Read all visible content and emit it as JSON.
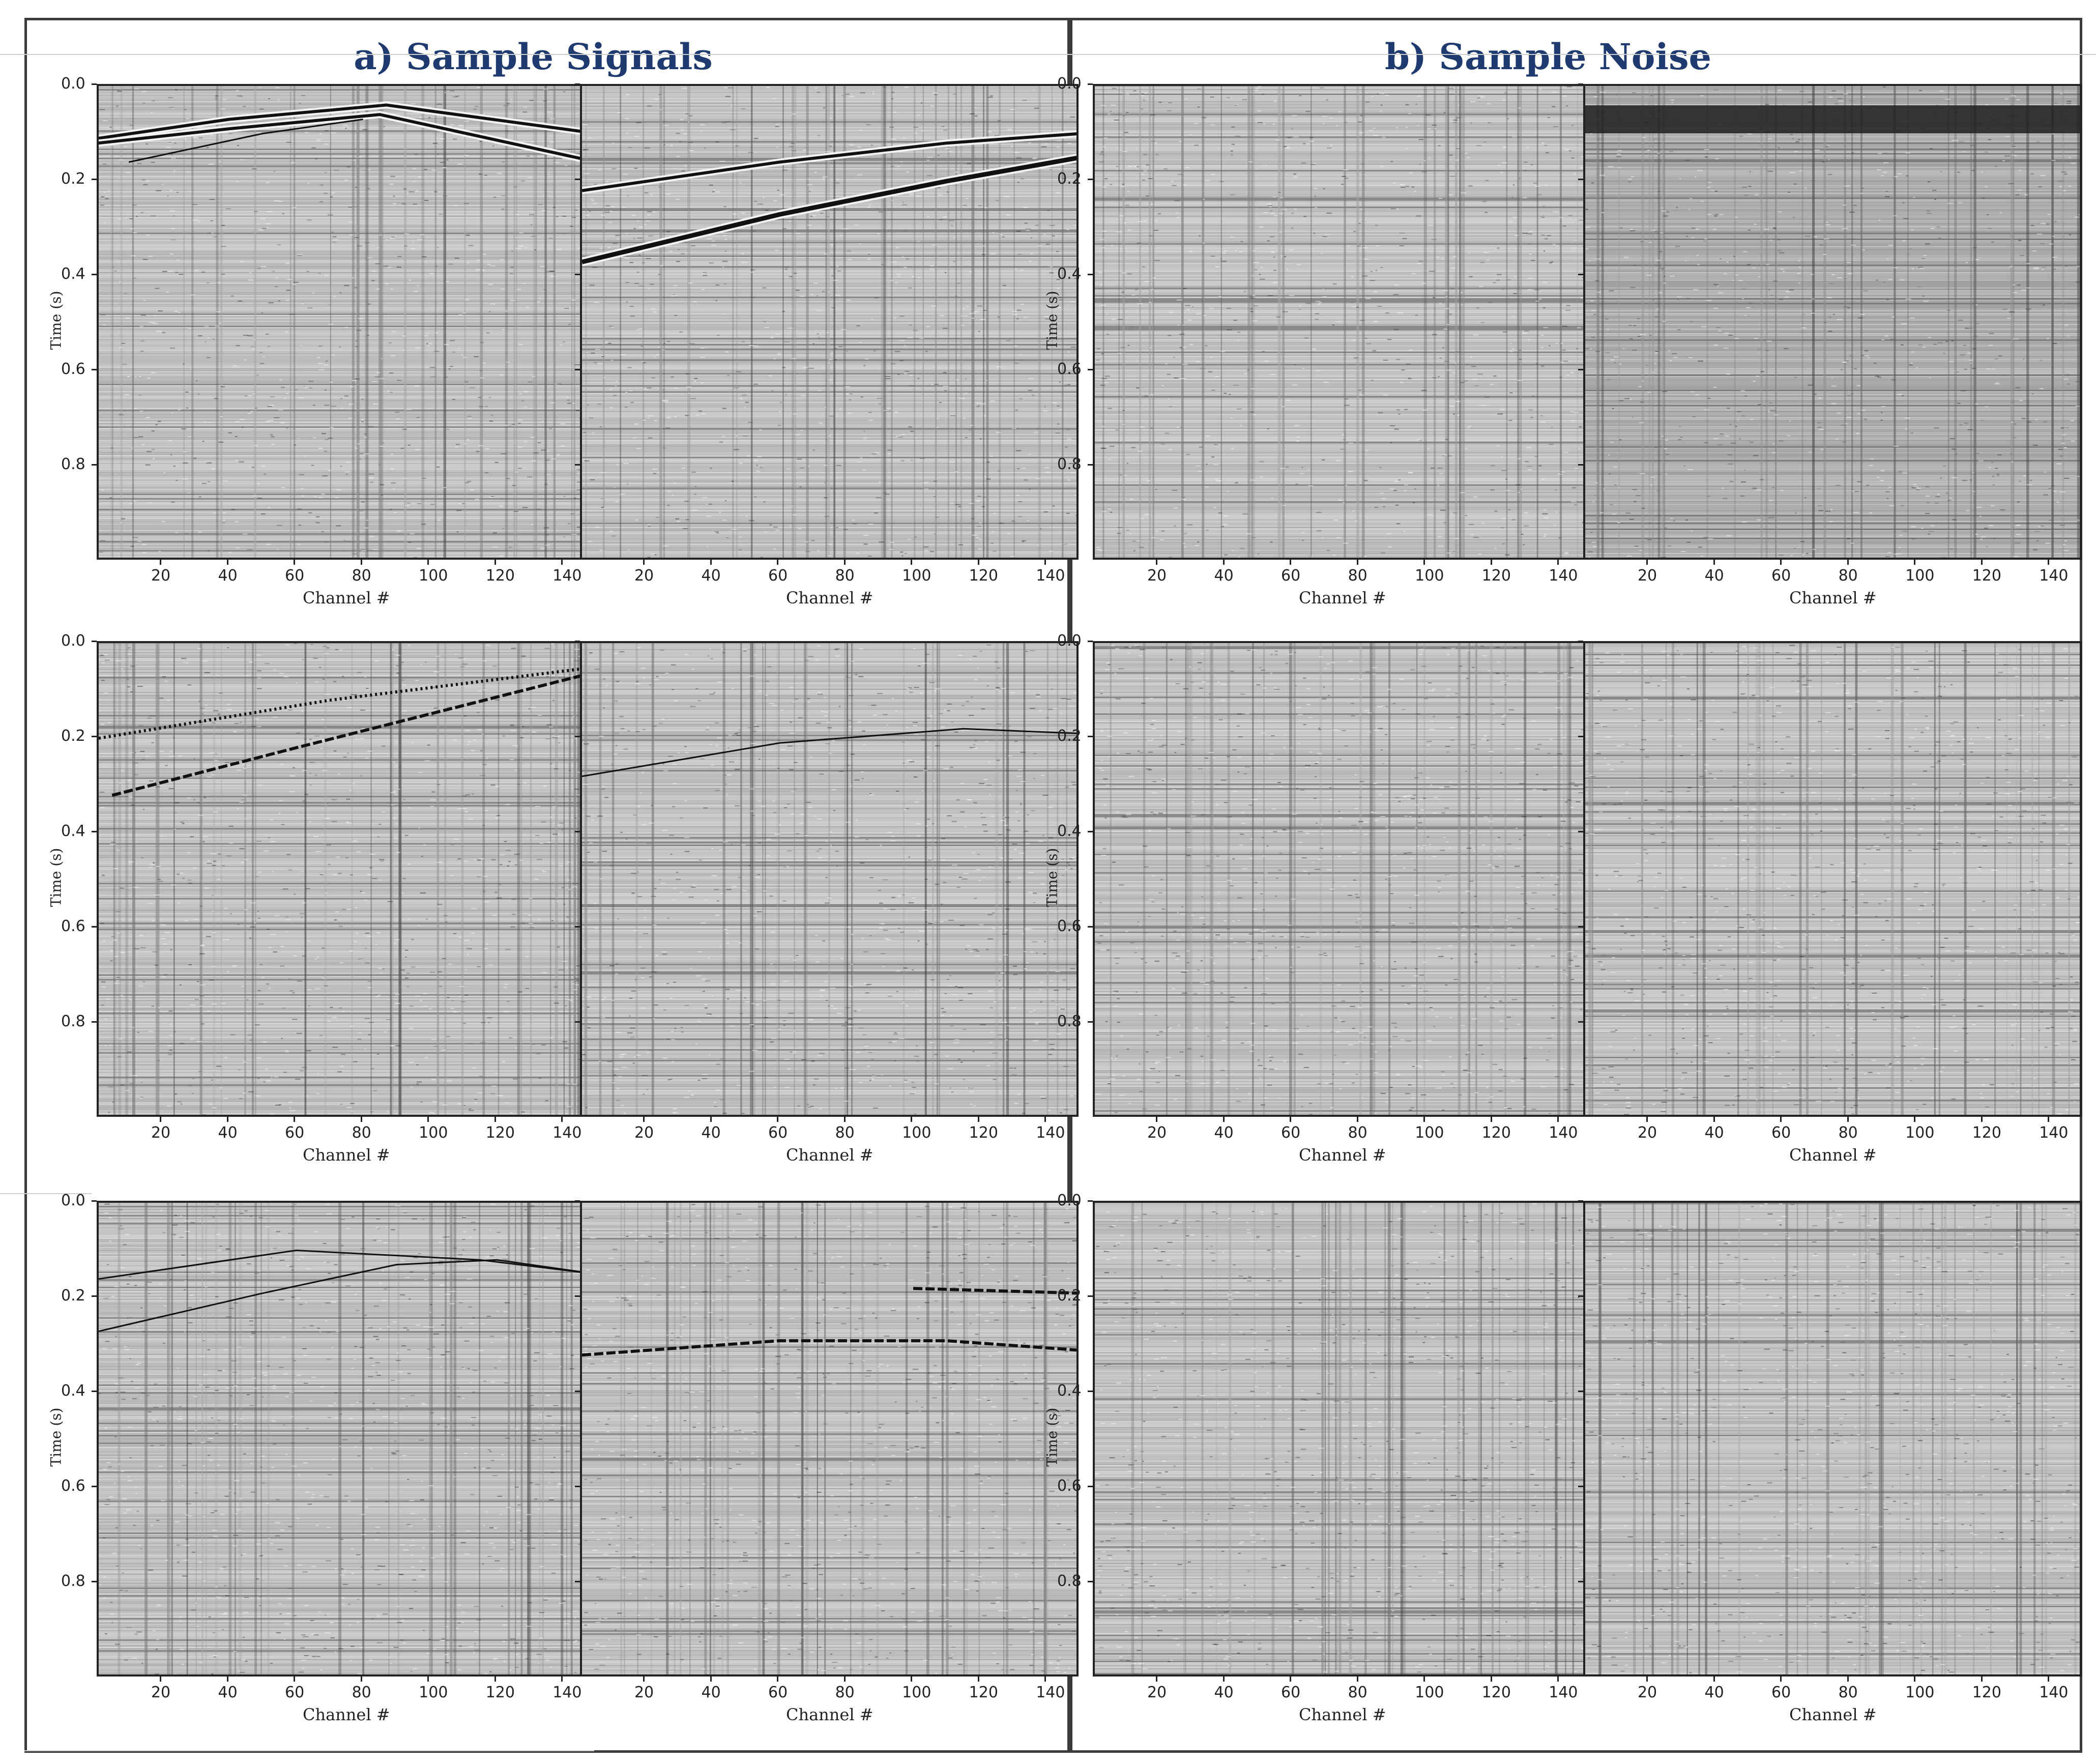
{
  "sections": [
    {
      "title": "a) Sample Signals"
    },
    {
      "title": "b) Sample Noise"
    }
  ],
  "chart_data": {
    "type": "heatmap",
    "description_kind": "seismic gathers (wiggle/variable-density sections)",
    "xlabel": "Channel #",
    "ylabel": "Time (s)",
    "xlim": [
      1,
      150
    ],
    "ylim": [
      1.0,
      0.0
    ],
    "x_ticks": [
      20,
      40,
      60,
      80,
      100,
      120,
      140
    ],
    "y_ticks": [
      0.0,
      0.2,
      0.4,
      0.6,
      0.8
    ],
    "y_tick_labels": [
      "0.0",
      "0.2",
      "0.4",
      "0.6",
      "0.8"
    ],
    "colormap": "grayscale",
    "panels": [
      {
        "section": 0,
        "row": 0,
        "col": 0,
        "events": [
          {
            "kind": "hyperbola",
            "points": [
              [
                1,
                0.11
              ],
              [
                40,
                0.07
              ],
              [
                87,
                0.04
              ],
              [
                150,
                0.1
              ]
            ],
            "width": 2
          },
          {
            "kind": "hyperbola",
            "points": [
              [
                1,
                0.12
              ],
              [
                40,
                0.09
              ],
              [
                85,
                0.06
              ],
              [
                150,
                0.16
              ]
            ],
            "width": 2
          },
          {
            "kind": "line",
            "points": [
              [
                10,
                0.16
              ],
              [
                50,
                0.1
              ],
              [
                80,
                0.07
              ]
            ],
            "width": 1
          }
        ]
      },
      {
        "section": 0,
        "row": 0,
        "col": 1,
        "events": [
          {
            "kind": "hyperbola",
            "points": [
              [
                1,
                0.22
              ],
              [
                60,
                0.16
              ],
              [
                110,
                0.12
              ],
              [
                150,
                0.1
              ]
            ],
            "width": 2
          },
          {
            "kind": "hyperbola",
            "points": [
              [
                1,
                0.37
              ],
              [
                60,
                0.27
              ],
              [
                110,
                0.2
              ],
              [
                150,
                0.15
              ]
            ],
            "width": 3
          }
        ]
      },
      {
        "section": 0,
        "row": 1,
        "col": 0,
        "events": [
          {
            "kind": "dotted",
            "points": [
              [
                1,
                0.2
              ],
              [
                70,
                0.12
              ],
              [
                150,
                0.05
              ]
            ],
            "width": 2
          },
          {
            "kind": "dashed",
            "points": [
              [
                5,
                0.32
              ],
              [
                60,
                0.22
              ],
              [
                150,
                0.06
              ]
            ],
            "width": 2
          }
        ]
      },
      {
        "section": 0,
        "row": 1,
        "col": 1,
        "events": [
          {
            "kind": "hyperbola",
            "points": [
              [
                1,
                0.28
              ],
              [
                60,
                0.21
              ],
              [
                115,
                0.18
              ],
              [
                150,
                0.19
              ]
            ],
            "width": 1
          }
        ]
      },
      {
        "section": 0,
        "row": 2,
        "col": 0,
        "events": [
          {
            "kind": "hyperbola",
            "points": [
              [
                1,
                0.16
              ],
              [
                60,
                0.1
              ],
              [
                115,
                0.12
              ],
              [
                150,
                0.15
              ]
            ],
            "width": 1
          },
          {
            "kind": "hyperbola",
            "points": [
              [
                1,
                0.27
              ],
              [
                50,
                0.19
              ],
              [
                90,
                0.13
              ],
              [
                120,
                0.12
              ],
              [
                150,
                0.15
              ]
            ],
            "width": 1
          }
        ]
      },
      {
        "section": 0,
        "row": 2,
        "col": 1,
        "events": [
          {
            "kind": "dashed",
            "points": [
              [
                1,
                0.32
              ],
              [
                60,
                0.29
              ],
              [
                110,
                0.29
              ],
              [
                150,
                0.31
              ]
            ],
            "width": 2
          },
          {
            "kind": "dashed",
            "points": [
              [
                100,
                0.18
              ],
              [
                150,
                0.19
              ]
            ],
            "width": 2
          }
        ]
      },
      {
        "section": 1,
        "row": 0,
        "col": 0,
        "events": []
      },
      {
        "section": 1,
        "row": 0,
        "col": 1,
        "events": [
          {
            "kind": "band",
            "points": [
              [
                1,
                0.07
              ],
              [
                150,
                0.07
              ]
            ],
            "width": 4
          }
        ]
      },
      {
        "section": 1,
        "row": 1,
        "col": 0,
        "events": []
      },
      {
        "section": 1,
        "row": 1,
        "col": 1,
        "events": []
      },
      {
        "section": 1,
        "row": 2,
        "col": 0,
        "events": []
      },
      {
        "section": 1,
        "row": 2,
        "col": 1,
        "events": []
      }
    ]
  }
}
